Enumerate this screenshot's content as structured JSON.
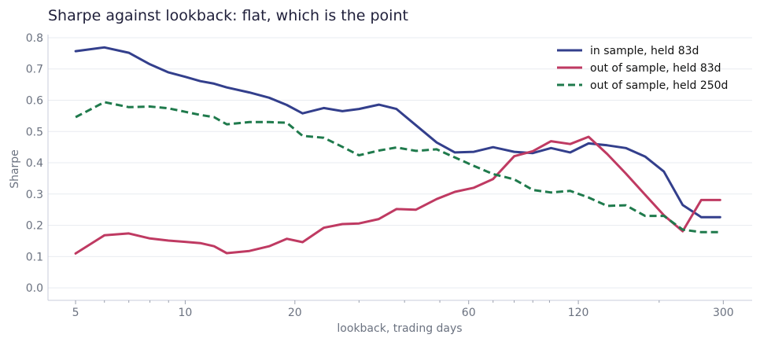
{
  "chart_data": {
    "type": "line",
    "title": "Sharpe against lookback: flat, which is the point",
    "xlabel": "lookback, trading days",
    "ylabel": "Sharpe",
    "xscale": "log",
    "xlim": [
      4.2,
      360
    ],
    "ylim": [
      -0.04,
      0.81
    ],
    "x_ticks": [
      5,
      10,
      20,
      60,
      120,
      300
    ],
    "x_tick_labels": [
      "5",
      "10",
      "20",
      "60",
      "120",
      "300"
    ],
    "y_ticks": [
      0.0,
      0.1,
      0.2,
      0.3,
      0.4,
      0.5,
      0.6,
      0.7,
      0.8
    ],
    "y_tick_labels": [
      "0.0",
      "0.1",
      "0.2",
      "0.3",
      "0.4",
      "0.5",
      "0.6",
      "0.7",
      "0.8"
    ],
    "grid": true,
    "legend_position": "top-right",
    "x": [
      5,
      6,
      7,
      8,
      9,
      10,
      11,
      12,
      13,
      15,
      17,
      19,
      21,
      24,
      27,
      30,
      34,
      38,
      43,
      49,
      55,
      62,
      70,
      80,
      90,
      101,
      114,
      128,
      144,
      162,
      183,
      206,
      232,
      261,
      294
    ],
    "series": [
      {
        "name": "in sample, held 83d",
        "color": "#333f8c",
        "dash": "solid",
        "values": [
          0.757,
          0.769,
          0.752,
          0.715,
          0.689,
          0.675,
          0.661,
          0.653,
          0.641,
          0.625,
          0.608,
          0.585,
          0.558,
          0.575,
          0.565,
          0.572,
          0.586,
          0.572,
          0.52,
          0.465,
          0.433,
          0.435,
          0.45,
          0.435,
          0.431,
          0.447,
          0.433,
          0.462,
          0.456,
          0.447,
          0.42,
          0.372,
          0.265,
          0.226,
          0.226
        ]
      },
      {
        "name": "out of sample, held 83d",
        "color": "#bf3a62",
        "dash": "solid",
        "values": [
          0.11,
          0.168,
          0.174,
          0.158,
          0.151,
          0.147,
          0.143,
          0.133,
          0.111,
          0.118,
          0.133,
          0.157,
          0.146,
          0.192,
          0.204,
          0.206,
          0.22,
          0.252,
          0.25,
          0.284,
          0.307,
          0.32,
          0.348,
          0.421,
          0.437,
          0.469,
          0.46,
          0.483,
          0.428,
          0.366,
          0.298,
          0.232,
          0.181,
          0.281,
          0.281
        ]
      },
      {
        "name": "out of sample, held 250d",
        "color": "#1f7a4c",
        "dash": "dashed",
        "values": [
          0.546,
          0.594,
          0.578,
          0.58,
          0.574,
          0.563,
          0.553,
          0.546,
          0.523,
          0.53,
          0.53,
          0.528,
          0.486,
          0.48,
          0.451,
          0.424,
          0.439,
          0.449,
          0.438,
          0.443,
          0.417,
          0.39,
          0.364,
          0.347,
          0.313,
          0.305,
          0.31,
          0.289,
          0.262,
          0.264,
          0.23,
          0.23,
          0.186,
          0.178,
          0.178
        ]
      }
    ]
  }
}
